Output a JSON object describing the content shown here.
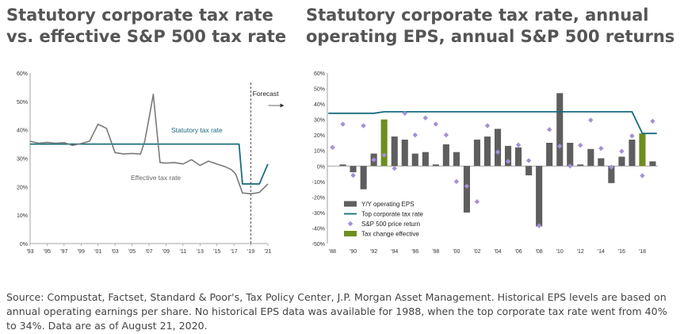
{
  "chart_data": [
    {
      "type": "line",
      "title": "Statutory corporate tax rate vs. effective S&P 500 tax rate",
      "x_ticks": [
        "'93",
        "'95",
        "'97",
        "'99",
        "'01",
        "'03",
        "'05",
        "'07",
        "'09",
        "'11",
        "'13",
        "'15",
        "'17",
        "'19",
        "'21"
      ],
      "y_ticks": [
        "0%",
        "10%",
        "20%",
        "30%",
        "40%",
        "50%",
        "60%"
      ],
      "ylim": [
        0,
        60
      ],
      "xlim": [
        1993,
        2021
      ],
      "forecast_label": "Forecast",
      "forecast_start": 2019,
      "series": [
        {
          "name": "Statutory tax rate",
          "color": "#1a6b7e",
          "points": [
            [
              1993,
              35
            ],
            [
              2017.6,
              35
            ],
            [
              2018,
              21
            ],
            [
              2020,
              21
            ],
            [
              2021,
              28
            ]
          ]
        },
        {
          "name": "Effective tax rate",
          "color": "#7a7a7a",
          "points": [
            [
              1993,
              36
            ],
            [
              1994,
              35.3
            ],
            [
              1995,
              35.6
            ],
            [
              1996,
              35.3
            ],
            [
              1997,
              35.5
            ],
            [
              1998,
              34.5
            ],
            [
              1999,
              35.2
            ],
            [
              2000,
              36
            ],
            [
              2001,
              42
            ],
            [
              2002,
              40.5
            ],
            [
              2003,
              32
            ],
            [
              2004,
              31.5
            ],
            [
              2005,
              31.7
            ],
            [
              2006,
              31.5
            ],
            [
              2006.5,
              36
            ],
            [
              2007,
              44
            ],
            [
              2007.5,
              52.5
            ],
            [
              2008.3,
              28.5
            ],
            [
              2009,
              28.3
            ],
            [
              2010,
              28.5
            ],
            [
              2011,
              28
            ],
            [
              2012,
              29.5
            ],
            [
              2013,
              27.5
            ],
            [
              2014,
              29
            ],
            [
              2015,
              28
            ],
            [
              2016,
              27
            ],
            [
              2016.7,
              26
            ],
            [
              2017.2,
              24.5
            ],
            [
              2018,
              17.8
            ],
            [
              2019,
              17.5
            ],
            [
              2020,
              18
            ],
            [
              2021,
              21
            ]
          ]
        }
      ]
    },
    {
      "type": "bar",
      "title": "Statutory corporate tax rate, annual operating EPS, annual S&P 500 returns",
      "x_ticks": [
        "'88",
        "'90",
        "'92",
        "'94",
        "'96",
        "'98",
        "'00",
        "'02",
        "'04",
        "'06",
        "'08",
        "'10",
        "'12",
        "'14",
        "'16",
        "'18"
      ],
      "y_ticks": [
        "-50%",
        "-40%",
        "-30%",
        "-20%",
        "-10%",
        "0%",
        "10%",
        "20%",
        "30%",
        "40%",
        "50%",
        "60%"
      ],
      "ylim": [
        -50,
        60
      ],
      "years": [
        1988,
        1989,
        1990,
        1991,
        1992,
        1993,
        1994,
        1995,
        1996,
        1997,
        1998,
        1999,
        2000,
        2001,
        2002,
        2003,
        2004,
        2005,
        2006,
        2007,
        2008,
        2009,
        2010,
        2011,
        2012,
        2013,
        2014,
        2015,
        2016,
        2017,
        2018,
        2019
      ],
      "eps_growth": [
        null,
        1,
        -4,
        -15,
        8,
        30,
        19,
        17,
        8,
        9,
        1,
        14,
        9,
        -30,
        17,
        19,
        24,
        13,
        12,
        -6,
        -39,
        15,
        47,
        15,
        1,
        11,
        5,
        -11,
        6,
        17,
        21,
        3
      ],
      "tax_change_years": [
        1993,
        2018
      ],
      "top_corporate_tax_rate": [
        34,
        34,
        34,
        34,
        34,
        35,
        35,
        35,
        35,
        35,
        35,
        35,
        35,
        35,
        35,
        35,
        35,
        35,
        35,
        35,
        35,
        35,
        35,
        35,
        35,
        35,
        35,
        35,
        35,
        35,
        21,
        21
      ],
      "sp500_price_return": [
        12,
        27,
        -6,
        26,
        4,
        7,
        -1.5,
        34,
        20,
        31,
        27,
        20,
        -10,
        -13,
        -23,
        26,
        9,
        3,
        13.6,
        3.5,
        -38.5,
        23.5,
        12.8,
        0,
        13.4,
        29.6,
        11.4,
        -0.7,
        9.5,
        19.4,
        -6.2,
        28.9
      ],
      "legend": [
        {
          "label": "Y/Y operating EPS",
          "color": "#5e5e5e",
          "kind": "bar"
        },
        {
          "label": "Top corporate tax rate",
          "color": "#1a6b7e",
          "kind": "line"
        },
        {
          "label": "S&P 500 price return",
          "color": "#a58fd6",
          "kind": "diamond"
        },
        {
          "label": "Tax change effective",
          "color": "#6e8e1e",
          "kind": "bar"
        }
      ]
    }
  ],
  "header": {
    "title_left": "Statutory corporate tax rate vs. effective S&P 500 tax rate",
    "title_right": "Statutory corporate tax rate, annual operating EPS, annual S&P 500 returns"
  },
  "footer": {
    "source": "Source: Compustat, Factset, Standard & Poor's, Tax Policy Center, J.P. Morgan Asset Management. Historical EPS levels are based on annual operating earnings per share. No historical EPS data was available for 1988, when the top corporate tax rate went from 40% to 34%. Data are as of August 21, 2020."
  }
}
